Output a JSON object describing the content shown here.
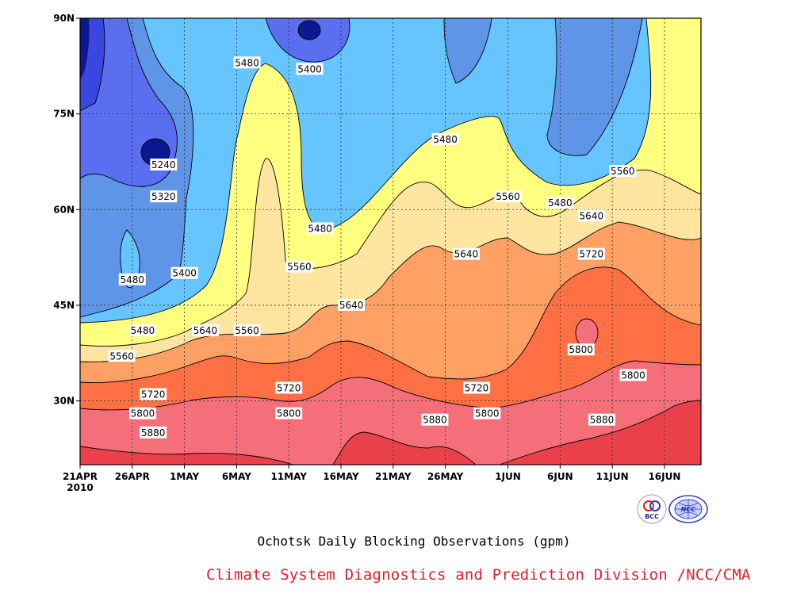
{
  "chart_data": {
    "type": "contour",
    "title": "Ochotsk Daily Blocking Observations (gpm)",
    "x_ticks": [
      "21APR",
      "26APR",
      "1MAY",
      "6MAY",
      "11MAY",
      "16MAY",
      "21MAY",
      "26MAY",
      "1JUN",
      "6JUN",
      "11JUN",
      "16JUN"
    ],
    "x_year": "2010",
    "y_ticks": [
      "90N",
      "75N",
      "60N",
      "45N",
      "30N"
    ],
    "ylim": [
      "20N",
      "90N"
    ],
    "grid": true,
    "levels": [
      5240,
      5320,
      5400,
      5480,
      5560,
      5640,
      5720,
      5800,
      5880
    ],
    "fill_colors": [
      "#0c1890",
      "#3a46e0",
      "#5a6ef0",
      "#5f95e6",
      "#66c4ff",
      "#ffff80",
      "#ffe5a0",
      "#ffa165",
      "#ff7145",
      "#f56f7b",
      "#e94049"
    ],
    "contour_labels": [
      {
        "text": "5480",
        "date": "7MAY",
        "lat": "83N"
      },
      {
        "text": "5400",
        "date": "13MAY",
        "lat": "82N"
      },
      {
        "text": "5240",
        "date": "29APR",
        "lat": "67N"
      },
      {
        "text": "5320",
        "date": "29APR",
        "lat": "62N"
      },
      {
        "text": "5480",
        "date": "26MAY",
        "lat": "71N"
      },
      {
        "text": "5560",
        "date": "1JUN",
        "lat": "62N"
      },
      {
        "text": "5480",
        "date": "6JUN",
        "lat": "61N"
      },
      {
        "text": "5560",
        "date": "12JUN",
        "lat": "66N"
      },
      {
        "text": "5480",
        "date": "14MAY",
        "lat": "57N"
      },
      {
        "text": "5640",
        "date": "9JUN",
        "lat": "59N"
      },
      {
        "text": "5640",
        "date": "28MAY",
        "lat": "53N"
      },
      {
        "text": "5720",
        "date": "9JUN",
        "lat": "53N"
      },
      {
        "text": "5560",
        "date": "12MAY",
        "lat": "51N"
      },
      {
        "text": "5480",
        "date": "26APR",
        "lat": "49N"
      },
      {
        "text": "5400",
        "date": "1MAY",
        "lat": "50N"
      },
      {
        "text": "5640",
        "date": "17MAY",
        "lat": "45N"
      },
      {
        "text": "5480",
        "date": "27APR",
        "lat": "41N"
      },
      {
        "text": "5640",
        "date": "3MAY",
        "lat": "41N"
      },
      {
        "text": "5560",
        "date": "7MAY",
        "lat": "41N"
      },
      {
        "text": "5560",
        "date": "25APR",
        "lat": "37N"
      },
      {
        "text": "5800",
        "date": "8JUN",
        "lat": "38N"
      },
      {
        "text": "5800",
        "date": "13JUN",
        "lat": "34N"
      },
      {
        "text": "5720",
        "date": "28APR",
        "lat": "31N"
      },
      {
        "text": "5720",
        "date": "11MAY",
        "lat": "32N"
      },
      {
        "text": "5720",
        "date": "29MAY",
        "lat": "32N"
      },
      {
        "text": "5800",
        "date": "27APR",
        "lat": "28N"
      },
      {
        "text": "5800",
        "date": "11MAY",
        "lat": "28N"
      },
      {
        "text": "5800",
        "date": "30MAY",
        "lat": "28N"
      },
      {
        "text": "5880",
        "date": "28APR",
        "lat": "25N"
      },
      {
        "text": "5880",
        "date": "25MAY",
        "lat": "27N"
      },
      {
        "text": "5880",
        "date": "10JUN",
        "lat": "27N"
      }
    ]
  },
  "logos": {
    "bcc": "BCC",
    "ncc": "NCC"
  },
  "credit": "Climate System Diagnostics and Prediction Division /NCC/CMA",
  "colors": {
    "credit": "#e0202a",
    "frame": "#000000"
  }
}
